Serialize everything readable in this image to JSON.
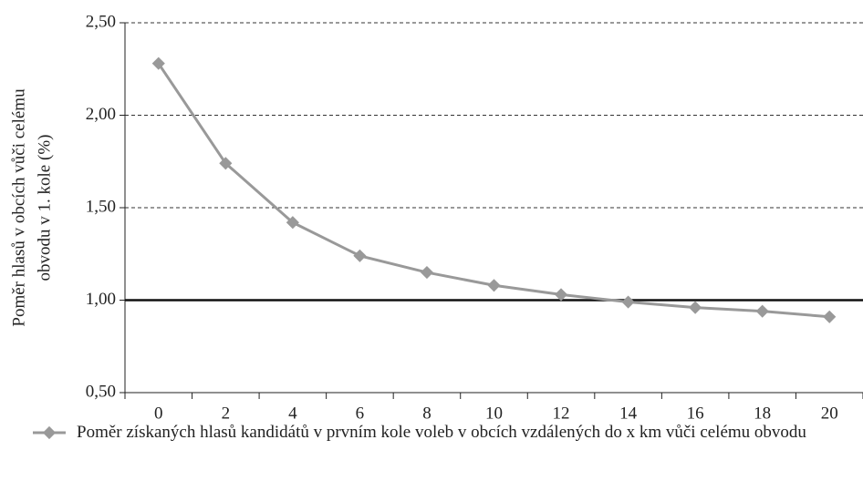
{
  "chart_data": {
    "type": "line",
    "ylabel": [
      "Poměr hlasů v obcích vůči celému",
      "obvodu v 1. kole (%)"
    ],
    "categories": [
      "0",
      "2",
      "4",
      "6",
      "8",
      "10",
      "12",
      "14",
      "16",
      "18",
      "20"
    ],
    "series": [
      {
        "name": "Poměr získaných hlasů kandidátů v prvním kole voleb v obcích vzdálených do x km vůči celému obvodu",
        "color": "#999999",
        "values": [
          2.28,
          1.74,
          1.42,
          1.24,
          1.15,
          1.08,
          1.03,
          0.99,
          0.96,
          0.94,
          0.91
        ]
      }
    ],
    "ylim": [
      0.5,
      2.5
    ],
    "yticks": [
      {
        "value": 0.5,
        "label": "0,50"
      },
      {
        "value": 1.0,
        "label": "1,00"
      },
      {
        "value": 1.5,
        "label": "1,50"
      },
      {
        "value": 2.0,
        "label": "2,00"
      },
      {
        "value": 2.5,
        "label": "2,50"
      }
    ],
    "grid": true,
    "reference_line": 1.0,
    "legend": "bottom-left"
  }
}
